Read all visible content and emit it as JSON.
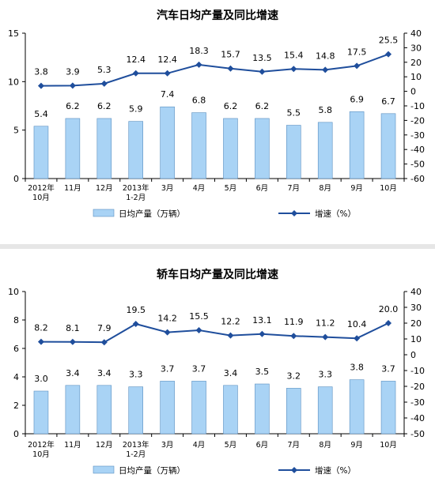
{
  "chart_data": [
    {
      "type": "bar+line",
      "title": "汽车日均产量及同比增速",
      "categories": [
        "2012年\n10月",
        "11月",
        "12月",
        "2013年\n1-2月",
        "3月",
        "4月",
        "5月",
        "6月",
        "7月",
        "8月",
        "9月",
        "10月"
      ],
      "y_left": {
        "min": 0,
        "max": 15,
        "ticks": [
          "0",
          "5",
          "10",
          "15"
        ]
      },
      "y_right": {
        "min": -60,
        "max": 40,
        "ticks": [
          "-60",
          "-50",
          "-40",
          "-30",
          "-20",
          "-10",
          "0",
          "10",
          "20",
          "30",
          "40"
        ]
      },
      "series": [
        {
          "name": "日均产量（万辆）",
          "kind": "bar",
          "axis": "left",
          "color": "#a9d3f5",
          "values": [
            5.4,
            6.2,
            6.2,
            5.9,
            7.4,
            6.8,
            6.2,
            6.2,
            5.5,
            5.8,
            6.9,
            6.7
          ]
        },
        {
          "name": "增速（%）",
          "kind": "line",
          "axis": "right",
          "color": "#1f4e9c",
          "values": [
            3.8,
            3.9,
            5.3,
            12.4,
            12.4,
            18.3,
            15.7,
            13.5,
            15.4,
            14.8,
            17.5,
            25.5
          ]
        }
      ]
    },
    {
      "type": "bar+line",
      "title": "轿车日均产量及同比增速",
      "categories": [
        "2012年\n10月",
        "11月",
        "12月",
        "2013年\n1-2月",
        "3月",
        "4月",
        "5月",
        "6月",
        "7月",
        "8月",
        "9月",
        "10月"
      ],
      "y_left": {
        "min": 0,
        "max": 10,
        "ticks": [
          "0",
          "2",
          "4",
          "6",
          "8",
          "10"
        ]
      },
      "y_right": {
        "min": -50,
        "max": 40,
        "ticks": [
          "-50",
          "-40",
          "-30",
          "-20",
          "-10",
          "0",
          "10",
          "20",
          "30",
          "40"
        ]
      },
      "series": [
        {
          "name": "日均产量（万辆）",
          "kind": "bar",
          "axis": "left",
          "color": "#a9d3f5",
          "values": [
            3.0,
            3.4,
            3.4,
            3.3,
            3.7,
            3.7,
            3.4,
            3.5,
            3.2,
            3.3,
            3.8,
            3.7
          ]
        },
        {
          "name": "增速（%）",
          "kind": "line",
          "axis": "right",
          "color": "#1f4e9c",
          "values": [
            8.2,
            8.1,
            7.9,
            19.5,
            14.2,
            15.5,
            12.2,
            13.1,
            11.9,
            11.2,
            10.4,
            20.0
          ]
        }
      ]
    }
  ]
}
